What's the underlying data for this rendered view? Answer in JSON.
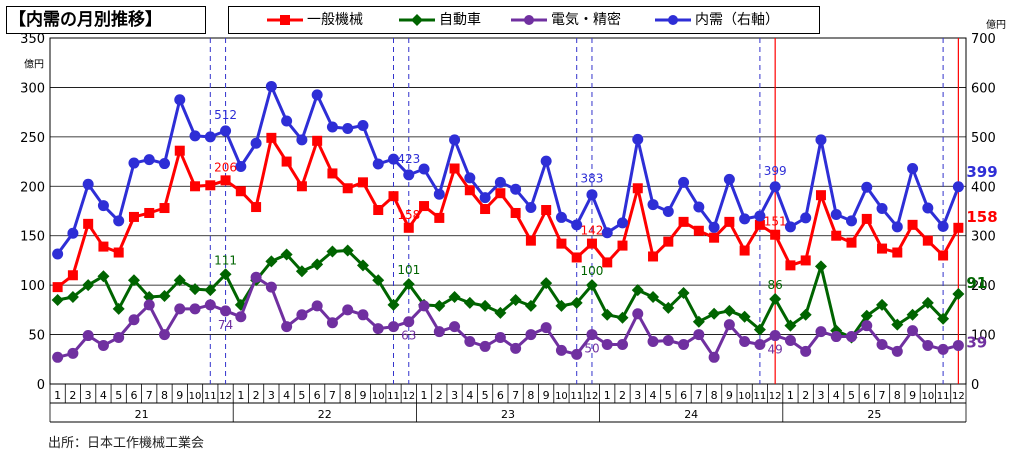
{
  "title": "【内需の月別推移】",
  "source": "出所：日本工作機械工業会",
  "chart_data": {
    "type": "line",
    "left_axis": {
      "unit": "億円",
      "min": 0,
      "max": 350,
      "ticks": [
        0,
        50,
        100,
        150,
        200,
        250,
        300,
        350
      ]
    },
    "right_axis": {
      "unit": "億円",
      "min": 0,
      "max": 700,
      "ticks": [
        0,
        100,
        200,
        300,
        400,
        500,
        600,
        700
      ]
    },
    "grid": true,
    "legend_position": "top",
    "x_months": [
      "1",
      "2",
      "3",
      "4",
      "5",
      "6",
      "7",
      "8",
      "9",
      "10",
      "11",
      "12",
      "1",
      "2",
      "3",
      "4",
      "5",
      "6",
      "7",
      "8",
      "9",
      "10",
      "11",
      "12",
      "1",
      "2",
      "3",
      "4",
      "5",
      "6",
      "7",
      "8",
      "9",
      "10",
      "11",
      "12",
      "1",
      "2",
      "3",
      "4",
      "5",
      "6",
      "7",
      "8",
      "9",
      "10",
      "11",
      "12",
      "1",
      "2",
      "3",
      "4",
      "5",
      "6",
      "7",
      "8",
      "9",
      "10",
      "11",
      "12"
    ],
    "x_years": [
      {
        "label": "21",
        "start": 0
      },
      {
        "label": "22",
        "start": 12
      },
      {
        "label": "23",
        "start": 24
      },
      {
        "label": "24",
        "start": 36
      },
      {
        "label": "25",
        "start": 48
      }
    ],
    "series": [
      {
        "name": "一般機械",
        "axis": "left",
        "color": "#ff0000",
        "marker": "square",
        "values": [
          98,
          110,
          162,
          139,
          133,
          169,
          173,
          178,
          236,
          200,
          201,
          206,
          195,
          179,
          249,
          225,
          200,
          246,
          213,
          198,
          204,
          176,
          190,
          158,
          180,
          168,
          218,
          196,
          177,
          193,
          173,
          145,
          176,
          142,
          128,
          142,
          123,
          140,
          198,
          129,
          144,
          164,
          155,
          148,
          164,
          135,
          161,
          151,
          120,
          125,
          191,
          150,
          143,
          167,
          137,
          133,
          161,
          145,
          130,
          158
        ]
      },
      {
        "name": "自動車",
        "axis": "left",
        "color": "#006400",
        "marker": "diamond",
        "values": [
          85,
          88,
          100,
          109,
          76,
          105,
          88,
          89,
          105,
          96,
          95,
          111,
          80,
          105,
          124,
          131,
          114,
          121,
          134,
          135,
          120,
          105,
          80,
          101,
          80,
          79,
          88,
          82,
          79,
          72,
          85,
          79,
          102,
          79,
          82,
          100,
          70,
          67,
          95,
          88,
          77,
          92,
          63,
          71,
          74,
          68,
          55,
          86,
          59,
          70,
          119,
          54,
          47,
          69,
          80,
          60,
          70,
          82,
          66,
          91
        ]
      },
      {
        "name": "電気・精密",
        "axis": "left",
        "color": "#7030a0",
        "marker": "circle",
        "values": [
          27,
          31,
          49,
          39,
          47,
          65,
          80,
          50,
          76,
          76,
          80,
          74,
          68,
          108,
          98,
          58,
          70,
          79,
          62,
          75,
          70,
          56,
          58,
          63,
          79,
          53,
          58,
          43,
          38,
          47,
          36,
          50,
          57,
          34,
          30,
          50,
          40,
          40,
          71,
          43,
          44,
          40,
          50,
          27,
          60,
          43,
          40,
          49,
          44,
          33,
          53,
          48,
          48,
          59,
          40,
          33,
          54,
          39,
          35,
          39
        ]
      },
      {
        "name": "内需（右軸）",
        "axis": "right",
        "color": "#2e2ed6",
        "marker": "circle",
        "values": [
          263,
          305,
          404,
          361,
          330,
          447,
          454,
          446,
          575,
          502,
          500,
          512,
          440,
          487,
          602,
          532,
          494,
          585,
          520,
          517,
          523,
          445,
          455,
          423,
          435,
          384,
          494,
          417,
          377,
          408,
          394,
          357,
          451,
          337,
          322,
          383,
          306,
          326,
          495,
          363,
          349,
          408,
          358,
          317,
          414,
          334,
          340,
          399,
          318,
          336,
          494,
          343,
          330,
          398,
          355,
          318,
          436,
          356,
          319,
          399
        ]
      }
    ],
    "data_labels": [
      {
        "series": "一般機械",
        "index": 11,
        "text": "206"
      },
      {
        "series": "一般機械",
        "index": 23,
        "text": "158"
      },
      {
        "series": "一般機械",
        "index": 35,
        "text": "142"
      },
      {
        "series": "一般機械",
        "index": 47,
        "text": "151"
      },
      {
        "series": "一般機械",
        "index": 59,
        "text": "158"
      },
      {
        "series": "自動車",
        "index": 11,
        "text": "111"
      },
      {
        "series": "自動車",
        "index": 23,
        "text": "101"
      },
      {
        "series": "自動車",
        "index": 35,
        "text": "100"
      },
      {
        "series": "自動車",
        "index": 47,
        "text": "86"
      },
      {
        "series": "自動車",
        "index": 59,
        "text": "91"
      },
      {
        "series": "電気・精密",
        "index": 11,
        "text": "74"
      },
      {
        "series": "電気・精密",
        "index": 23,
        "text": "63"
      },
      {
        "series": "電気・精密",
        "index": 35,
        "text": "50"
      },
      {
        "series": "電気・精密",
        "index": 47,
        "text": "49"
      },
      {
        "series": "電気・精密",
        "index": 59,
        "text": "39"
      },
      {
        "series": "内需（右軸）",
        "index": 11,
        "text": "512"
      },
      {
        "series": "内需（右軸）",
        "index": 23,
        "text": "423"
      },
      {
        "series": "内需（右軸）",
        "index": 35,
        "text": "383"
      },
      {
        "series": "内需（右軸）",
        "index": 47,
        "text": "399"
      },
      {
        "series": "内需（右軸）",
        "index": 59,
        "text": "399"
      }
    ],
    "dashed_year_markers": [
      10.5,
      11.5,
      22.5,
      23.5,
      34.5,
      35.5,
      46.5,
      58.5
    ],
    "solid_markers": [
      47.5,
      59.5
    ]
  }
}
